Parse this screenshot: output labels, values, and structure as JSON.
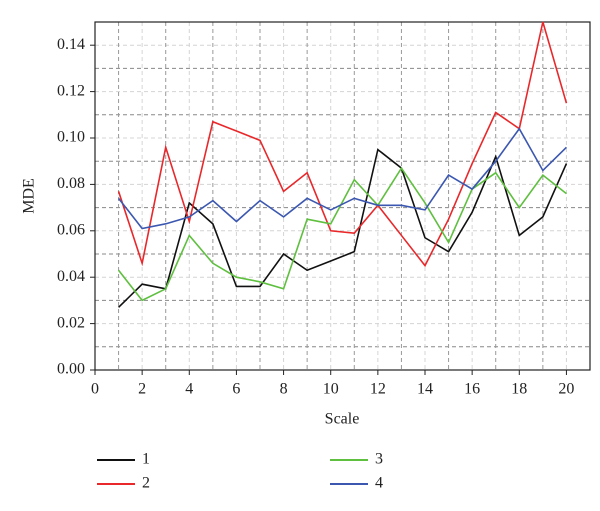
{
  "chart_data": {
    "type": "line",
    "xlabel": "Scale",
    "ylabel": "MDE",
    "x": [
      1,
      2,
      3,
      4,
      5,
      6,
      7,
      8,
      9,
      10,
      11,
      12,
      13,
      14,
      15,
      16,
      17,
      18,
      19,
      20
    ],
    "series": [
      {
        "name": "1",
        "color": "#111111",
        "values": [
          0.027,
          0.037,
          0.035,
          0.072,
          0.063,
          0.036,
          0.036,
          0.05,
          0.043,
          0.047,
          0.051,
          0.095,
          0.087,
          0.057,
          0.051,
          0.068,
          0.092,
          0.058,
          0.066,
          0.089
        ]
      },
      {
        "name": "2",
        "color": "#e8282b",
        "values": [
          0.077,
          0.046,
          0.096,
          0.064,
          0.107,
          0.103,
          0.099,
          0.077,
          0.085,
          0.06,
          0.059,
          0.071,
          0.058,
          0.045,
          0.065,
          0.089,
          0.111,
          0.104,
          0.15,
          0.115
        ]
      },
      {
        "name": "3",
        "color": "#5fbf3f",
        "values": [
          0.043,
          0.03,
          0.035,
          0.058,
          0.046,
          0.04,
          0.038,
          0.035,
          0.065,
          0.063,
          0.082,
          0.071,
          0.087,
          0.072,
          0.055,
          0.078,
          0.085,
          0.07,
          0.084,
          0.076
        ]
      },
      {
        "name": "4",
        "color": "#3b57b0",
        "values": [
          0.074,
          0.061,
          0.063,
          0.066,
          0.073,
          0.064,
          0.073,
          0.066,
          0.074,
          0.069,
          0.074,
          0.071,
          0.071,
          0.069,
          0.084,
          0.078,
          0.09,
          0.104,
          0.086,
          0.096
        ]
      }
    ],
    "xlim": [
      0,
      21
    ],
    "xticks": [
      0,
      2,
      4,
      6,
      8,
      10,
      12,
      14,
      16,
      18,
      20
    ],
    "ylim": [
      0,
      0.15
    ],
    "yticks": [
      {
        "value": 0,
        "label": "0.00"
      },
      {
        "value": 0.02,
        "label": "0.02"
      },
      {
        "value": 0.04,
        "label": "0.04"
      },
      {
        "value": 0.06,
        "label": "0.06"
      },
      {
        "value": 0.08,
        "label": "0.08"
      },
      {
        "value": 0.1,
        "label": "0.10"
      },
      {
        "value": 0.12,
        "label": "0.12"
      },
      {
        "value": 0.14,
        "label": "0.14"
      }
    ],
    "grid": true
  }
}
